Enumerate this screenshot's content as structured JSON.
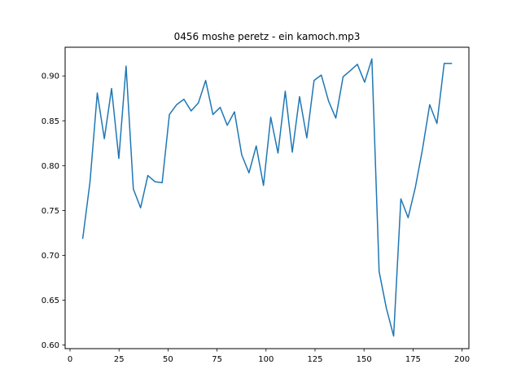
{
  "chart_data": {
    "type": "line",
    "title": "0456 moshe peretz - ein kamoch.mp3",
    "xlabel": "",
    "ylabel": "",
    "xlim": [
      -2.5,
      203.5
    ],
    "ylim": [
      0.596,
      0.932
    ],
    "xticks": [
      0,
      25,
      50,
      75,
      100,
      125,
      150,
      175,
      200
    ],
    "yticks": [
      0.6,
      0.65,
      0.7,
      0.75,
      0.8,
      0.85,
      0.9
    ],
    "grid": false,
    "series": [
      {
        "color": "#1f77b4",
        "x": [
          6.5,
          10.2,
          13.9,
          17.5,
          21.2,
          24.9,
          28.6,
          32.3,
          36.0,
          39.7,
          43.4,
          47.0,
          50.7,
          54.4,
          58.1,
          61.8,
          65.5,
          69.2,
          72.9,
          76.6,
          80.2,
          83.9,
          87.6,
          91.3,
          95.0,
          98.7,
          102.4,
          106.1,
          109.8,
          113.4,
          117.1,
          120.8,
          124.5,
          128.2,
          131.9,
          135.6,
          139.3,
          143.0,
          146.6,
          150.3,
          154.0,
          157.7,
          161.4,
          165.1,
          168.8,
          172.5,
          176.2,
          179.8,
          183.5,
          187.2,
          190.9,
          194.6
        ],
        "values": [
          0.719,
          0.782,
          0.881,
          0.83,
          0.886,
          0.808,
          0.911,
          0.774,
          0.753,
          0.789,
          0.782,
          0.781,
          0.857,
          0.868,
          0.874,
          0.861,
          0.87,
          0.895,
          0.857,
          0.865,
          0.845,
          0.86,
          0.812,
          0.792,
          0.822,
          0.778,
          0.854,
          0.814,
          0.883,
          0.815,
          0.877,
          0.831,
          0.895,
          0.901,
          0.872,
          0.853,
          0.899,
          0.906,
          0.913,
          0.893,
          0.919,
          0.682,
          0.641,
          0.61,
          0.763,
          0.742,
          0.776,
          0.818,
          0.868,
          0.847,
          0.914,
          0.914
        ]
      }
    ]
  }
}
